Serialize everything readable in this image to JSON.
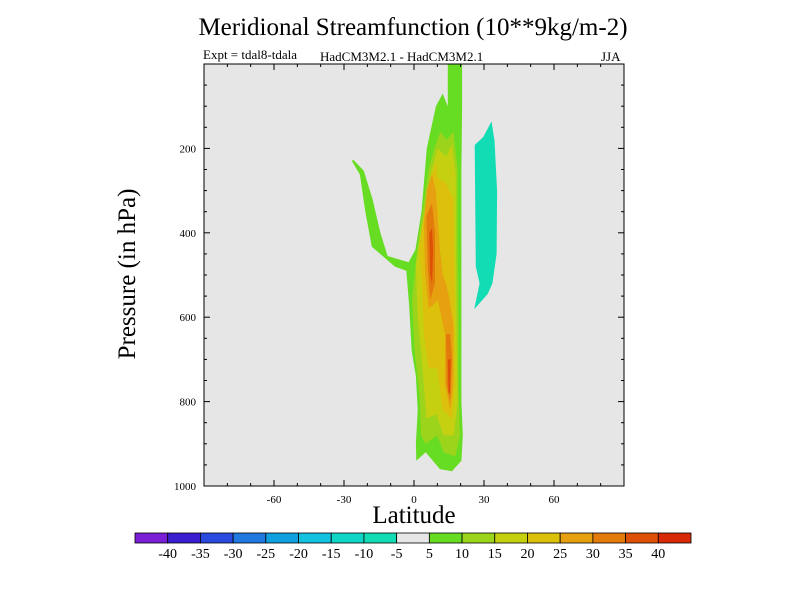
{
  "chart_data": {
    "type": "contour",
    "title": "Meridional Streamfunction (10**9kg/m-2)",
    "experiment": "Expt = tdal8-tdala",
    "models": "HadCM3M2.1 - HadCM3M2.1",
    "season": "JJA",
    "xlabel": "Latitude",
    "ylabel": "Pressure (in hPa)",
    "xlim": [
      -90,
      90
    ],
    "ylim": [
      1000,
      0
    ],
    "y_inverted": true,
    "xticks": [
      -60,
      -30,
      0,
      30,
      60
    ],
    "xtick_labels": [
      "-60",
      "-30",
      "0",
      "30",
      "60"
    ],
    "yticks": [
      200,
      400,
      600,
      800,
      1000
    ],
    "ytick_labels": [
      "200",
      "400",
      "600",
      "800",
      "1000"
    ],
    "background_color": "#e6e6e6",
    "colorbar": {
      "levels": [
        -40,
        -35,
        -30,
        -25,
        -20,
        -15,
        -10,
        -5,
        5,
        10,
        15,
        20,
        25,
        30,
        35,
        40
      ],
      "level_labels": [
        "-40",
        "-35",
        "-30",
        "-25",
        "-20",
        "-15",
        "-10",
        "-5",
        "5",
        "10",
        "15",
        "20",
        "25",
        "30",
        "35",
        "40"
      ],
      "colors": [
        "#7a1fd6",
        "#3a1fd0",
        "#2a49de",
        "#1f79e0",
        "#0fa0e0",
        "#12c2e0",
        "#10d6c8",
        "#12dcb4",
        "#e6e6e6",
        "#66dd22",
        "#9cd41c",
        "#c4d010",
        "#dcc00c",
        "#e6a010",
        "#e27a0c",
        "#de5006",
        "#d82a06"
      ]
    },
    "regions": [
      {
        "name": "positive-5-10",
        "level": 5,
        "color": "#66dd22",
        "points": [
          [
            -26.6,
            230
          ],
          [
            -23.2,
            262
          ],
          [
            -20.9,
            348
          ],
          [
            -18.1,
            433
          ],
          [
            -8.2,
            480
          ],
          [
            -3.3,
            490
          ],
          [
            -2.1,
            570
          ],
          [
            -1.0,
            680
          ],
          [
            0.8,
            740
          ],
          [
            1.6,
            820
          ],
          [
            0.8,
            900
          ],
          [
            1.0,
            940
          ],
          [
            5.0,
            920
          ],
          [
            11.1,
            960
          ],
          [
            16.3,
            965
          ],
          [
            20.3,
            940
          ],
          [
            20.9,
            880
          ],
          [
            20.3,
            800
          ],
          [
            20.3,
            600
          ],
          [
            20.3,
            400
          ],
          [
            20.3,
            250
          ],
          [
            20.6,
            100
          ],
          [
            20.6,
            -160
          ],
          [
            14.5,
            -160
          ],
          [
            14.5,
            100
          ],
          [
            12.3,
            70
          ],
          [
            9.4,
            100
          ],
          [
            5.5,
            200
          ],
          [
            3.2,
            350
          ],
          [
            0.6,
            440
          ],
          [
            -2.3,
            470
          ],
          [
            -11.3,
            455
          ],
          [
            -14.4,
            400
          ],
          [
            -17.8,
            320
          ],
          [
            -21.5,
            253
          ],
          [
            -26.0,
            227
          ]
        ]
      },
      {
        "name": "negative-10-5",
        "level": -10,
        "color": "#12dcb4",
        "points": [
          [
            26.0,
            192
          ],
          [
            26.5,
            480
          ],
          [
            28.1,
            520
          ],
          [
            25.8,
            581
          ],
          [
            31.6,
            545
          ],
          [
            33.6,
            520
          ],
          [
            35.4,
            450
          ],
          [
            35.6,
            300
          ],
          [
            34.5,
            182
          ],
          [
            33.2,
            136
          ],
          [
            29.7,
            173
          ]
        ]
      },
      {
        "name": "positive-10-15",
        "level": 10,
        "color": "#9cd41c",
        "points": [
          [
            -0.8,
            560
          ],
          [
            0.3,
            680
          ],
          [
            2.3,
            780
          ],
          [
            3.0,
            880
          ],
          [
            5.0,
            900
          ],
          [
            9.9,
            880
          ],
          [
            12.7,
            920
          ],
          [
            17.7,
            930
          ],
          [
            19.7,
            880
          ],
          [
            19.1,
            780
          ],
          [
            19.1,
            600
          ],
          [
            18.7,
            400
          ],
          [
            18.7,
            250
          ],
          [
            16.9,
            160
          ],
          [
            14.0,
            180
          ],
          [
            11.3,
            160
          ],
          [
            8.2,
            210
          ],
          [
            6.3,
            250
          ],
          [
            3.7,
            350
          ],
          [
            1.1,
            450
          ]
        ]
      },
      {
        "name": "positive-15-20",
        "level": 15,
        "color": "#c4d010",
        "points": [
          [
            0.8,
            480
          ],
          [
            1.6,
            600
          ],
          [
            3.0,
            680
          ],
          [
            4.2,
            760
          ],
          [
            5.3,
            840
          ],
          [
            9.6,
            830
          ],
          [
            12.7,
            880
          ],
          [
            17.1,
            880
          ],
          [
            18.7,
            800
          ],
          [
            18.3,
            640
          ],
          [
            17.9,
            420
          ],
          [
            17.9,
            260
          ],
          [
            16.3,
            190
          ],
          [
            13.7,
            220
          ],
          [
            10.1,
            200
          ],
          [
            7.2,
            260
          ],
          [
            4.8,
            340
          ],
          [
            2.3,
            420
          ]
        ]
      },
      {
        "name": "positive-20-25",
        "level": 20,
        "color": "#dcc00c",
        "points": [
          [
            2.3,
            440
          ],
          [
            3.6,
            540
          ],
          [
            4.2,
            640
          ],
          [
            6.3,
            720
          ],
          [
            9.9,
            720
          ],
          [
            12.3,
            820
          ],
          [
            16.3,
            840
          ],
          [
            17.7,
            760
          ],
          [
            17.5,
            620
          ],
          [
            17.1,
            440
          ],
          [
            16.9,
            320
          ],
          [
            13.3,
            280
          ],
          [
            9.9,
            270
          ],
          [
            9.4,
            230
          ],
          [
            6.3,
            300
          ],
          [
            3.7,
            380
          ]
        ]
      },
      {
        "name": "positive-25-30",
        "level": 25,
        "color": "#e6a010",
        "points": [
          [
            4.2,
            380
          ],
          [
            4.8,
            500
          ],
          [
            6.3,
            580
          ],
          [
            10.3,
            560
          ],
          [
            13.3,
            640
          ],
          [
            13.3,
            760
          ],
          [
            15.5,
            820
          ],
          [
            16.9,
            760
          ],
          [
            16.9,
            620
          ],
          [
            15.3,
            560
          ],
          [
            13.7,
            520
          ],
          [
            12.3,
            500
          ],
          [
            11.1,
            440
          ],
          [
            9.4,
            300
          ],
          [
            7.7,
            260
          ],
          [
            5.5,
            300
          ]
        ]
      },
      {
        "name": "positive-30-35",
        "level": 30,
        "color": "#e27a0c",
        "points": [
          [
            5.3,
            360
          ],
          [
            5.9,
            480
          ],
          [
            6.9,
            560
          ],
          [
            9.0,
            520
          ],
          [
            9.0,
            400
          ],
          [
            7.7,
            330
          ]
        ]
      },
      {
        "name": "positive-30-35b",
        "level": 30,
        "color": "#e27a0c",
        "points": [
          [
            13.7,
            640
          ],
          [
            14.0,
            760
          ],
          [
            15.5,
            800
          ],
          [
            16.3,
            700
          ],
          [
            15.5,
            640
          ]
        ]
      },
      {
        "name": "positive-35-40",
        "level": 35,
        "color": "#de5006",
        "points": [
          [
            6.6,
            400
          ],
          [
            6.9,
            500
          ],
          [
            7.7,
            520
          ],
          [
            8.2,
            440
          ],
          [
            7.7,
            390
          ]
        ]
      },
      {
        "name": "positive-35-40b",
        "level": 35,
        "color": "#de5006",
        "points": [
          [
            14.5,
            700
          ],
          [
            14.8,
            780
          ],
          [
            15.5,
            780
          ],
          [
            15.7,
            700
          ]
        ]
      }
    ]
  }
}
